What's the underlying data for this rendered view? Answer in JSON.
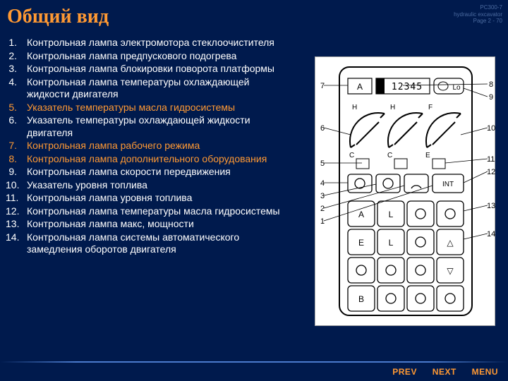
{
  "meta": {
    "model": "PC300-7",
    "desc": "hydraulic excavator",
    "page": "Page 2 - 70"
  },
  "title": "Общий вид",
  "items": [
    {
      "n": "1.",
      "t": "Контрольная лампа электромотора стеклоочистителя",
      "hl": false
    },
    {
      "n": "2.",
      "t": "Контрольная лампа предпускового подогрева",
      "hl": false
    },
    {
      "n": "3.",
      "t": "Контрольная лампа блокировки поворота платформы",
      "hl": false
    },
    {
      "n": "4.",
      "t": "Контрольная лампа температуры охлаждающей жидкости двигателя",
      "hl": false
    },
    {
      "n": "5.",
      "t": "Указатель температуры масла гидросистемы",
      "hl": true
    },
    {
      "n": "6.",
      "t": "Указатель температуры охлаждающей жидкости двигателя",
      "hl": false
    },
    {
      "n": "7.",
      "t": "Контрольная лампа рабочего режима",
      "hl": true
    },
    {
      "n": "8.",
      "t": "Контрольная лампа дополнительного оборудования",
      "hl": true
    },
    {
      "n": "9.",
      "t": "Контрольная лампа скорости передвижения",
      "hl": false
    },
    {
      "n": "10.",
      "t": "Указатель уровня топлива",
      "hl": false
    },
    {
      "n": "11.",
      "t": "Контрольная лампа уровня топлива",
      "hl": false
    },
    {
      "n": "12.",
      "t": "Контрольная лампа температуры масла гидросистемы",
      "hl": false
    },
    {
      "n": "13.",
      "t": "Контрольная лампа макс, мощности",
      "hl": false
    },
    {
      "n": "14.",
      "t": "Контрольная лампа системы автоматического замедления оборотов двигателя",
      "hl": false
    }
  ],
  "nav": {
    "prev": "PREV",
    "next": "NEXT",
    "menu": "MENU"
  },
  "diagram": {
    "top_display": {
      "a": "A",
      "digits": "12345",
      "lo": "Lo"
    },
    "gauges": [
      "H",
      "H",
      "F",
      "C",
      "C",
      "E"
    ],
    "callouts_left": [
      "7",
      "6",
      "5",
      "4",
      "3",
      "2",
      "1"
    ],
    "callouts_right": [
      "8",
      "9",
      "10",
      "11",
      "12",
      "13",
      "14"
    ],
    "keypad_labels": [
      "A",
      "L",
      "",
      "",
      "E",
      "L",
      "",
      "△",
      "",
      "",
      "",
      "▽",
      "B",
      "",
      "",
      ""
    ],
    "mid_int": "INT"
  }
}
